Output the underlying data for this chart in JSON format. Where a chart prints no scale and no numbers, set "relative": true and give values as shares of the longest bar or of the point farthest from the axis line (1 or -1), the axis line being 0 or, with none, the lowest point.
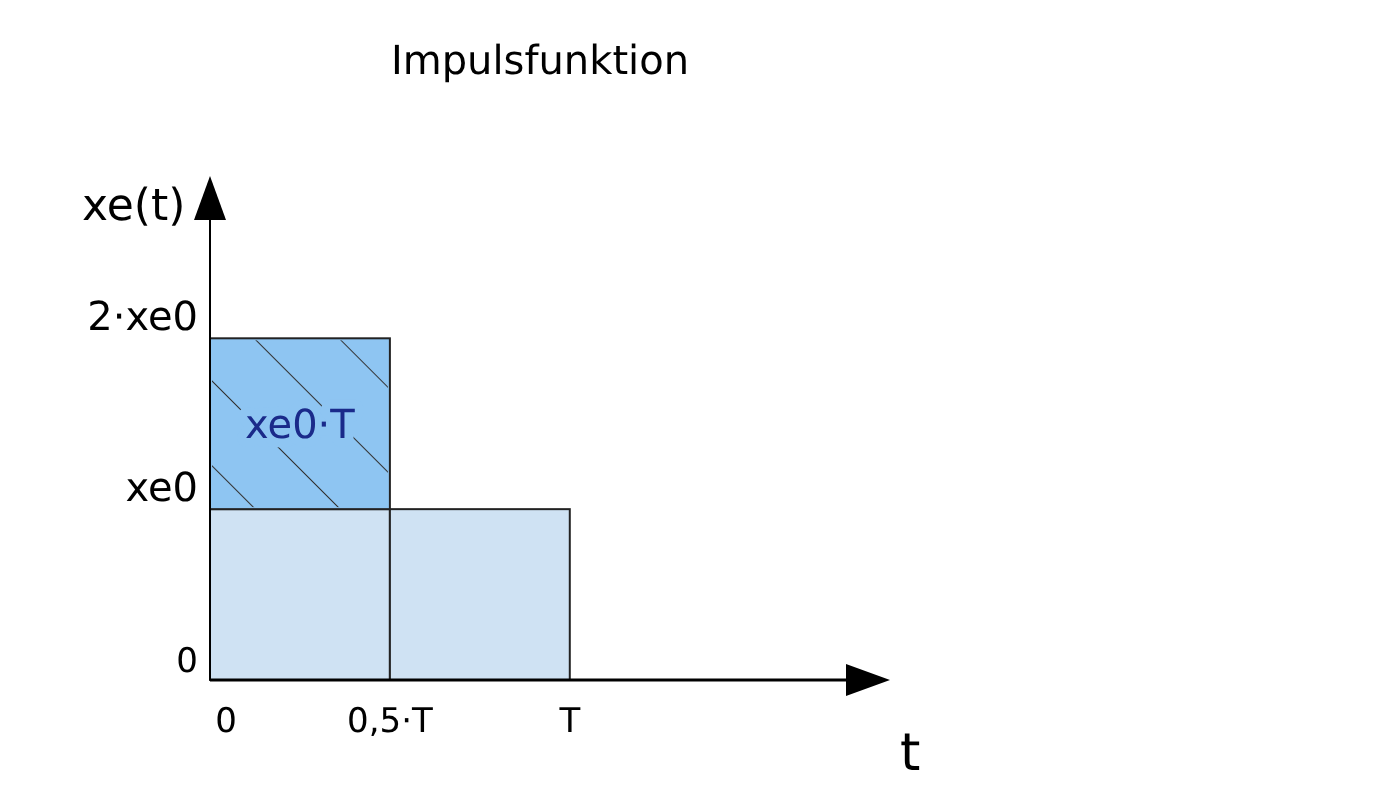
{
  "chart_data": {
    "type": "bar",
    "title": "Impulsfunktion",
    "xlabel": "t",
    "ylabel": "xe(t)",
    "stacked": true,
    "x": [
      0.25,
      0.75
    ],
    "series": [
      {
        "color": "#cfe2f3",
        "values": [
          0.5,
          0.5
        ]
      },
      {
        "color": "#8ec5f2",
        "values": [
          0.5,
          0
        ]
      }
    ],
    "xlim": [
      0,
      1.89
    ],
    "xticks": [
      0,
      {
        "value": 0.5,
        "label": "0,5·T"
      },
      {
        "value": 1,
        "label": "T"
      }
    ],
    "relative": true,
    "annotations": [
      "0",
      "xe0",
      "2·xe0",
      "xe0·T"
    ]
  }
}
